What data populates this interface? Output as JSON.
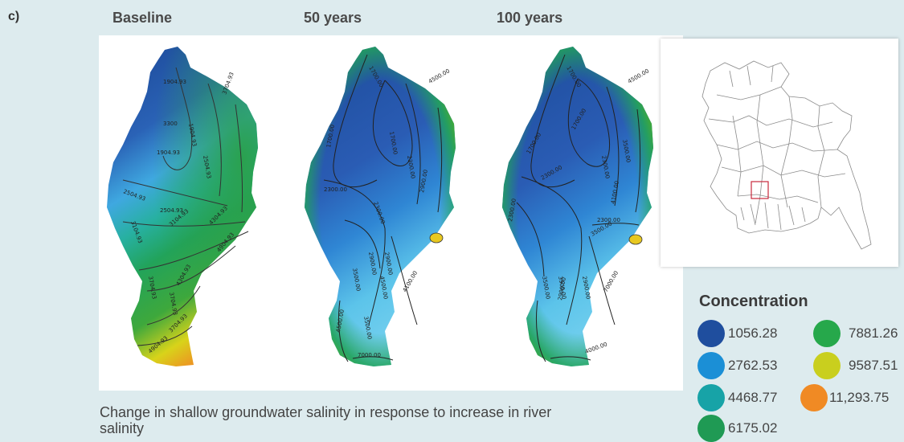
{
  "panel_label": "c)",
  "scenarios": [
    {
      "title": "Baseline",
      "contours": [
        "1904.93",
        "3300",
        "1904.93",
        "1904.93",
        "2504.93",
        "2504.93",
        "3104.93",
        "3704.93",
        "3104.93",
        "3704.93",
        "4304.93",
        "3704.93",
        "4304.93",
        "4904.93",
        "2504.93",
        "3704.93",
        "4904.93"
      ]
    },
    {
      "title": "50 years",
      "contours": [
        "1700.00",
        "1700.00",
        "2300.00",
        "1700.00",
        "2300.00",
        "2300.00",
        "2900.00",
        "4500.00",
        "2900.00",
        "3500.00",
        "4500.00",
        "2900.00",
        "3500.00",
        "4100.00",
        "4500.00",
        "7000.00"
      ]
    },
    {
      "title": "100 years",
      "contours": [
        "1700.00",
        "1700.00",
        "1700.00",
        "2300.00",
        "2300.00",
        "3500.00",
        "2300.00",
        "2300.00",
        "2900.00",
        "3500.00",
        "2900.00",
        "3500.00",
        "3900.00",
        "4100.00",
        "4500.00",
        "7000.00",
        "4000.00"
      ]
    }
  ],
  "caption": "Change in shallow groundwater salinity in response to increase in river salinity",
  "legend": {
    "title": "Concentration",
    "items": [
      {
        "label": "1056.28",
        "color": "#1f4e9e"
      },
      {
        "label": "2762.53",
        "color": "#1b8fd6"
      },
      {
        "label": "4468.77",
        "color": "#17a3a7"
      },
      {
        "label": "6175.02",
        "color": "#1f9a54"
      },
      {
        "label": "7881.26",
        "color": "#26a84b"
      },
      {
        "label": "9587.51",
        "color": "#c9cf1e"
      },
      {
        "label": "11,293.75",
        "color": "#f08a24"
      }
    ]
  },
  "colors": {
    "background": "#ddebee",
    "inset_highlight": "#c8283c"
  }
}
